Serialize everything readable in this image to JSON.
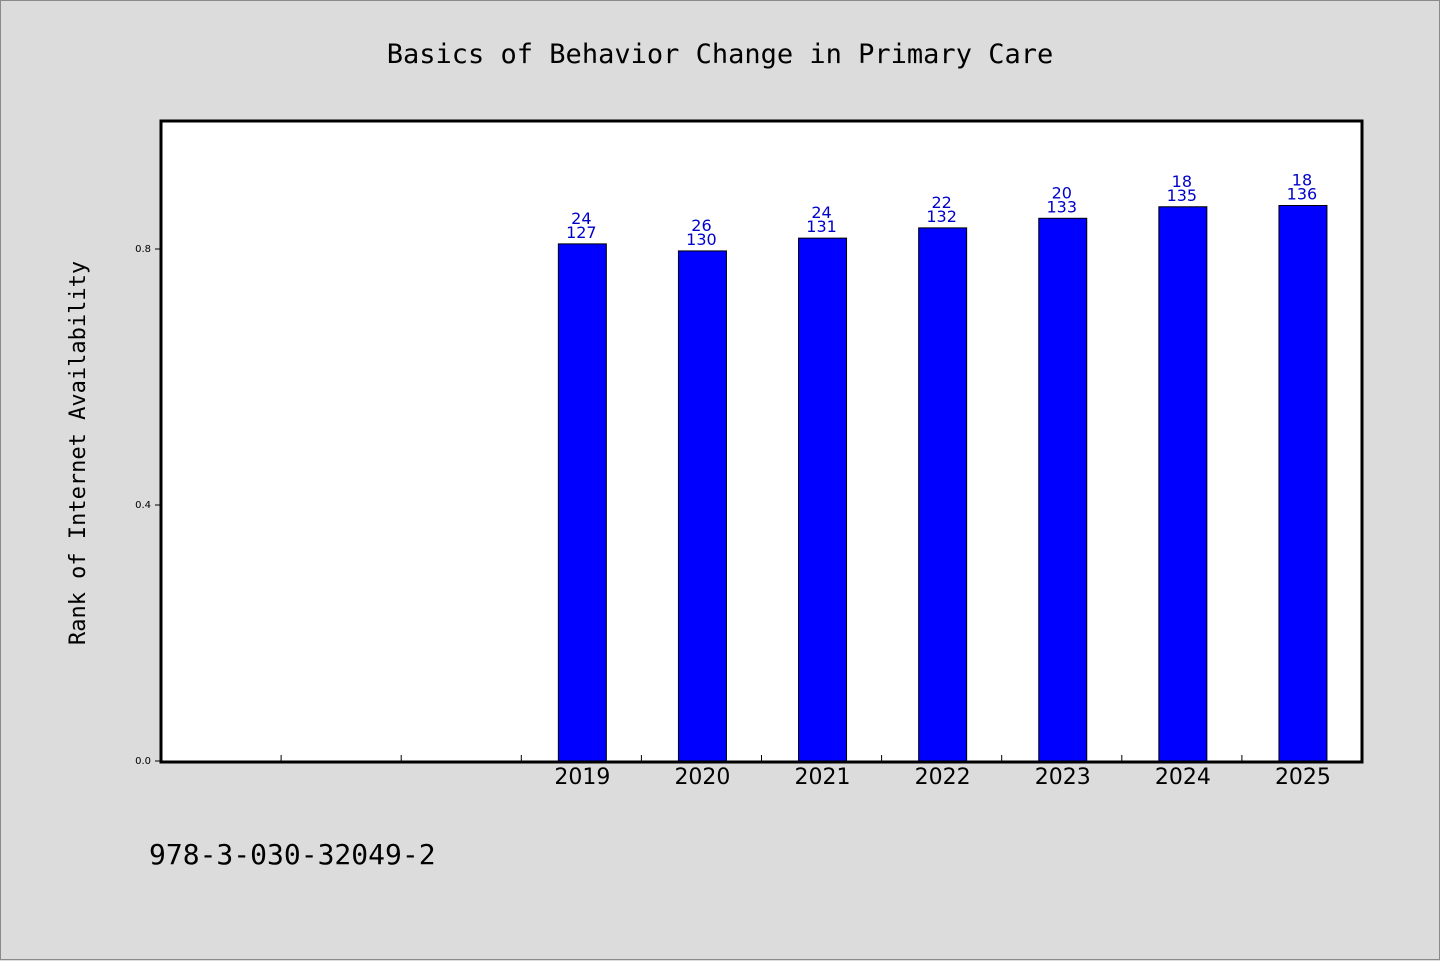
{
  "chart_data": {
    "type": "bar",
    "title": "Basics of Behavior Change in Primary Care",
    "xlabel": "",
    "ylabel": "Rank of Internet Availability",
    "categories": [
      "",
      "",
      "",
      "2019",
      "2020",
      "2021",
      "2022",
      "2023",
      "2024",
      "2025"
    ],
    "values": [
      null,
      null,
      null,
      0.808,
      0.797,
      0.817,
      0.833,
      0.848,
      0.866,
      0.868
    ],
    "label_top": [
      "",
      "",
      "",
      "24",
      "26",
      "24",
      "22",
      "20",
      "18",
      "18"
    ],
    "label_bottom": [
      "",
      "",
      "",
      "127",
      "130",
      "131",
      "132",
      "133",
      "135",
      "136"
    ],
    "yticks": [
      0.0,
      0.4,
      0.8
    ],
    "ytick_labels": [
      "0.0",
      "0.4",
      "0.8"
    ],
    "ylim": [
      0,
      1.0
    ],
    "grid": false,
    "legend": "none",
    "bar_color": "#0000ff",
    "label_color": "#0000cc"
  },
  "footnote": "978-3-030-32049-2"
}
